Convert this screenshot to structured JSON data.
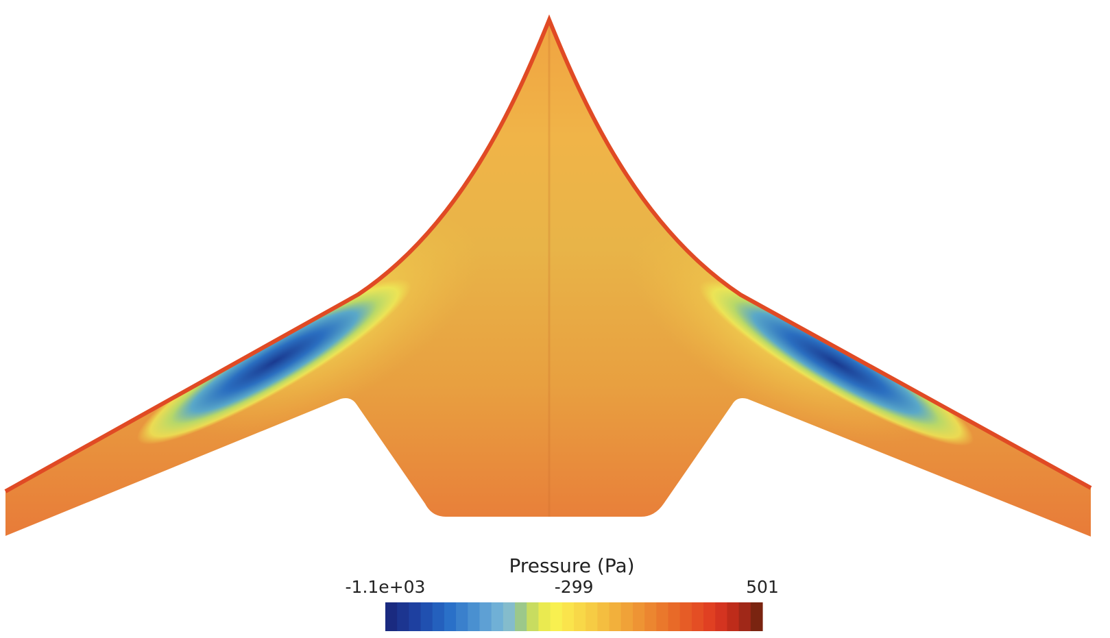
{
  "colorbar": {
    "title": "Pressure (Pa)",
    "lim": [
      -1100,
      501
    ],
    "ticks": [
      {
        "value": -1100,
        "label": "-1.1e+03"
      },
      -299,
      501
    ],
    "colors": [
      "#1a2a80",
      "#1c3590",
      "#1e40a0",
      "#2050b0",
      "#2460bd",
      "#2a70c8",
      "#3a80cc",
      "#4a90d0",
      "#5ea0d4",
      "#70b0d6",
      "#84bccc",
      "#9cc88a",
      "#c8dc60",
      "#eaea50",
      "#f8f050",
      "#fae44c",
      "#f8d848",
      "#f6cc44",
      "#f4be40",
      "#f2b03c",
      "#f0a238",
      "#ee9434",
      "#ec8630",
      "#ea782c",
      "#e86a28",
      "#e65c26",
      "#e44e24",
      "#e04022",
      "#d43420",
      "#be2c1a",
      "#a02818",
      "#7a2410"
    ]
  }
}
